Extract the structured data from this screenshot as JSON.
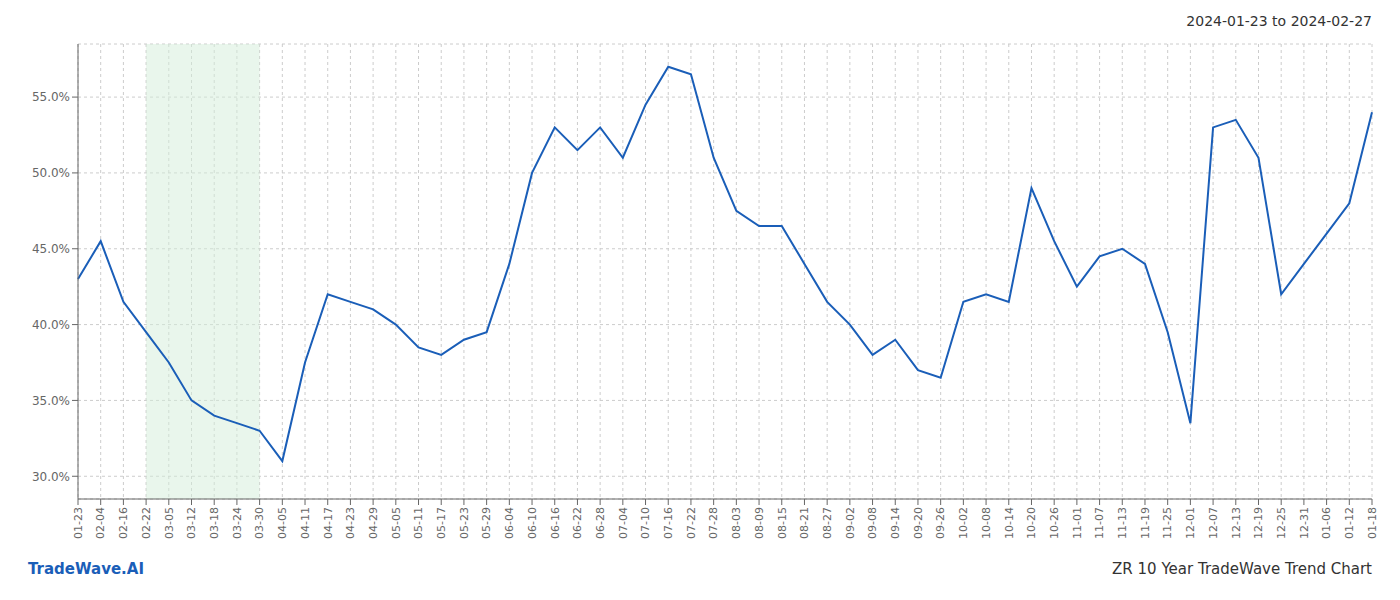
{
  "chart_data": {
    "type": "line",
    "title": "2024-01-23 to 2024-02-27",
    "annotations": [
      {
        "text": "TradeWave.AI",
        "position": "bottom_left",
        "color": "#1a5eb8"
      },
      {
        "text": "ZR 10 Year TradeWave Trend Chart",
        "position": "bottom_right"
      }
    ],
    "categories": [
      "01-23",
      "02-04",
      "02-16",
      "02-22",
      "03-05",
      "03-12",
      "03-18",
      "03-24",
      "03-30",
      "04-05",
      "04-11",
      "04-17",
      "04-23",
      "04-29",
      "05-05",
      "05-11",
      "05-17",
      "05-23",
      "05-29",
      "06-04",
      "06-10",
      "06-16",
      "06-22",
      "06-28",
      "07-04",
      "07-10",
      "07-16",
      "07-22",
      "07-28",
      "08-03",
      "08-09",
      "08-15",
      "08-21",
      "08-27",
      "09-02",
      "09-08",
      "09-14",
      "09-20",
      "09-26",
      "10-02",
      "10-08",
      "10-14",
      "10-20",
      "10-26",
      "11-01",
      "11-07",
      "11-13",
      "11-19",
      "11-25",
      "12-01",
      "12-07",
      "12-13",
      "12-19",
      "12-25",
      "12-31",
      "01-06",
      "01-12",
      "01-18"
    ],
    "values": [
      0.43,
      0.455,
      0.415,
      0.395,
      0.375,
      0.35,
      0.34,
      0.335,
      0.33,
      0.31,
      0.375,
      0.42,
      0.415,
      0.41,
      0.4,
      0.385,
      0.38,
      0.39,
      0.395,
      0.44,
      0.5,
      0.53,
      0.515,
      0.53,
      0.51,
      0.545,
      0.57,
      0.565,
      0.51,
      0.475,
      0.465,
      0.465,
      0.44,
      0.415,
      0.4,
      0.38,
      0.39,
      0.37,
      0.365,
      0.415,
      0.42,
      0.415,
      0.49,
      0.455,
      0.425,
      0.445,
      0.45,
      0.44,
      0.395,
      0.335,
      0.53,
      0.535,
      0.51,
      0.42,
      0.44,
      0.46,
      0.48,
      0.54
    ],
    "color": "#1a5eb8",
    "shade": {
      "start": "02-22",
      "end": "03-30",
      "color": "#d4edda"
    },
    "ylim": [
      0.285,
      0.585
    ],
    "yticks": [
      {
        "value": 0.3,
        "label": "30.0%"
      },
      {
        "value": 0.35,
        "label": "35.0%"
      },
      {
        "value": 0.4,
        "label": "40.0%"
      },
      {
        "value": 0.45,
        "label": "45.0%"
      },
      {
        "value": 0.5,
        "label": "50.0%"
      },
      {
        "value": 0.55,
        "label": "55.0%"
      }
    ],
    "grid": true
  }
}
